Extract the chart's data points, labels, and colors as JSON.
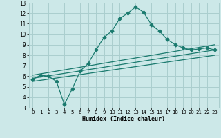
{
  "title": "",
  "xlabel": "Humidex (Indice chaleur)",
  "bg_color": "#cce8e8",
  "grid_color": "#aacece",
  "line_color": "#1a7a6e",
  "xlim": [
    -0.5,
    23.5
  ],
  "ylim": [
    3,
    13
  ],
  "xticks": [
    0,
    1,
    2,
    3,
    4,
    5,
    6,
    7,
    8,
    9,
    10,
    11,
    12,
    13,
    14,
    15,
    16,
    17,
    18,
    19,
    20,
    21,
    22,
    23
  ],
  "yticks": [
    3,
    4,
    5,
    6,
    7,
    8,
    9,
    10,
    11,
    12,
    13
  ],
  "main_line_x": [
    0,
    1,
    2,
    3,
    4,
    5,
    6,
    7,
    8,
    9,
    10,
    11,
    12,
    13,
    14,
    15,
    16,
    17,
    18,
    19,
    20,
    21,
    22,
    23
  ],
  "main_line_y": [
    5.7,
    6.1,
    6.0,
    5.5,
    3.3,
    4.8,
    6.5,
    7.2,
    8.5,
    9.7,
    10.3,
    11.5,
    12.0,
    12.6,
    12.1,
    10.9,
    10.3,
    9.5,
    9.0,
    8.7,
    8.5,
    8.6,
    8.7,
    8.5
  ],
  "line2_x": [
    0,
    23
  ],
  "line2_y": [
    6.1,
    9.0
  ],
  "line3_x": [
    0,
    23
  ],
  "line3_y": [
    5.8,
    8.5
  ],
  "line4_x": [
    0,
    23
  ],
  "line4_y": [
    5.5,
    8.0
  ]
}
